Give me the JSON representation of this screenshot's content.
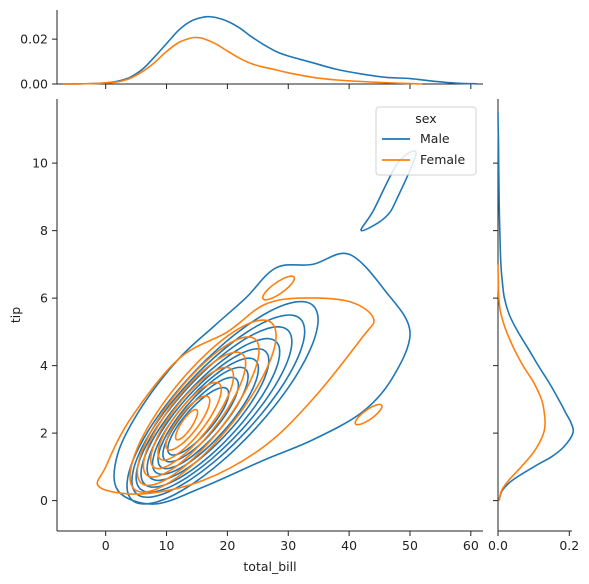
{
  "chart_data": {
    "type": "kde_joint",
    "xlabel": "total_bill",
    "ylabel": "tip",
    "xlim": [
      -8,
      62
    ],
    "ylim": [
      -0.9,
      11.9
    ],
    "x_ticks": [
      0,
      10,
      20,
      30,
      40,
      50,
      60
    ],
    "y_ticks": [
      0,
      2,
      4,
      6,
      8,
      10
    ],
    "legend": {
      "title": "sex",
      "placement": "upper-right",
      "entries": [
        "Male",
        "Female"
      ]
    },
    "colors": {
      "Male": "#1f77b4",
      "Female": "#ff7f0e"
    },
    "marginal_x": {
      "ylim": [
        0,
        0.033
      ],
      "y_ticks": [
        0.0,
        0.02
      ],
      "y_tick_labels": [
        "0.00",
        "0.02"
      ],
      "series": [
        {
          "name": "Male",
          "x": [
            -7,
            -4,
            -1,
            2,
            4,
            6,
            8,
            10,
            12,
            14,
            16,
            17,
            18,
            20,
            22,
            24,
            26,
            28,
            30,
            34,
            38,
            42,
            46,
            50,
            54,
            58,
            61
          ],
          "y": [
            0,
            0.0001,
            0.0003,
            0.0013,
            0.003,
            0.0065,
            0.012,
            0.018,
            0.024,
            0.028,
            0.0298,
            0.03,
            0.0297,
            0.028,
            0.025,
            0.021,
            0.0175,
            0.0145,
            0.0125,
            0.0095,
            0.0065,
            0.0045,
            0.003,
            0.0024,
            0.0012,
            0.0003,
            0.0001
          ]
        },
        {
          "name": "Female",
          "x": [
            -7,
            -4,
            -1,
            2,
            4,
            6,
            8,
            10,
            12,
            14,
            15,
            16,
            18,
            20,
            22,
            24,
            26,
            28,
            30,
            34,
            38,
            42,
            46,
            50,
            52
          ],
          "y": [
            0,
            0.0001,
            0.0003,
            0.001,
            0.0025,
            0.0055,
            0.0095,
            0.0145,
            0.0185,
            0.0205,
            0.0207,
            0.0203,
            0.018,
            0.0147,
            0.0115,
            0.009,
            0.0075,
            0.0063,
            0.005,
            0.003,
            0.0018,
            0.0011,
            0.0006,
            0.0002,
            0
          ]
        }
      ]
    },
    "marginal_y": {
      "xlim": [
        0,
        0.23
      ],
      "x_ticks": [
        0.0,
        0.2
      ],
      "x_tick_labels": [
        "0.0",
        "0.2"
      ],
      "series": [
        {
          "name": "Male",
          "y": [
            0,
            0.3,
            0.6,
            1,
            1.3,
            1.6,
            2,
            2.3,
            2.6,
            3,
            3.5,
            4,
            4.5,
            5,
            5.5,
            6,
            6.5,
            7,
            8,
            9,
            10,
            10.6,
            11,
            11.5
          ],
          "x": [
            0.003,
            0.012,
            0.04,
            0.1,
            0.15,
            0.185,
            0.21,
            0.205,
            0.19,
            0.17,
            0.143,
            0.113,
            0.085,
            0.056,
            0.032,
            0.018,
            0.012,
            0.008,
            0.005,
            0.003,
            0.002,
            0.0015,
            0.0006,
            0
          ]
        },
        {
          "name": "Female",
          "y": [
            0,
            0.3,
            0.6,
            1,
            1.3,
            1.6,
            2,
            2.3,
            2.6,
            3,
            3.5,
            4,
            4.5,
            5,
            5.5,
            5.8,
            6.2,
            6.6,
            7
          ],
          "x": [
            0.003,
            0.01,
            0.03,
            0.065,
            0.09,
            0.11,
            0.128,
            0.132,
            0.13,
            0.122,
            0.1,
            0.07,
            0.045,
            0.024,
            0.009,
            0.004,
            0.0015,
            0.0005,
            0
          ]
        }
      ]
    },
    "contours": [
      {
        "name": "Male",
        "levels": [
          {
            "center": [
              15.2,
              2.35
            ],
            "sx": 5.0,
            "sy": 1.0
          },
          {
            "center": [
              15.6,
              2.4
            ],
            "sx": 6.2,
            "sy": 1.25
          },
          {
            "center": [
              16.0,
              2.45
            ],
            "sx": 7.4,
            "sy": 1.5
          },
          {
            "center": [
              16.4,
              2.5
            ],
            "sx": 8.7,
            "sy": 1.72
          },
          {
            "center": [
              16.8,
              2.55
            ],
            "sx": 10.0,
            "sy": 1.95
          },
          {
            "center": [
              17.2,
              2.6
            ],
            "sx": 11.4,
            "sy": 2.2
          },
          {
            "center": [
              17.8,
              2.7
            ],
            "sx": 12.8,
            "sy": 2.45
          },
          {
            "center": [
              18.5,
              2.8
            ],
            "sx": 14.2,
            "sy": 2.7
          },
          {
            "center": [
              19.2,
              2.9
            ],
            "sx": 15.7,
            "sy": 3.0
          }
        ],
        "outer": [
          [
            2,
            0.3
          ],
          [
            8,
            -0.1
          ],
          [
            16,
            0.4
          ],
          [
            26,
            1.2
          ],
          [
            34,
            1.8
          ],
          [
            42,
            2.6
          ],
          [
            47,
            3.6
          ],
          [
            50,
            5.0
          ],
          [
            46,
            6.2
          ],
          [
            40,
            7.3
          ],
          [
            34,
            7.0
          ],
          [
            28,
            6.9
          ],
          [
            23,
            6.0
          ],
          [
            18,
            5.2
          ],
          [
            12,
            4.2
          ],
          [
            6,
            2.8
          ],
          [
            2,
            1.4
          ]
        ],
        "peak": [
          [
            42,
            8.0
          ],
          [
            46,
            8.4
          ],
          [
            48,
            9.0
          ],
          [
            51,
            10.3
          ],
          [
            48,
            10.0
          ],
          [
            44,
            8.6
          ]
        ]
      },
      {
        "name": "Female",
        "levels": [
          {
            "center": [
              13.3,
              2.25
            ],
            "sx": 1.8,
            "sy": 0.45
          },
          {
            "center": [
              13.5,
              2.3
            ],
            "sx": 3.6,
            "sy": 0.8
          },
          {
            "center": [
              13.8,
              2.35
            ],
            "sx": 5.2,
            "sy": 1.15
          },
          {
            "center": [
              14.2,
              2.45
            ],
            "sx": 6.8,
            "sy": 1.5
          },
          {
            "center": [
              14.6,
              2.55
            ],
            "sx": 8.4,
            "sy": 1.85
          },
          {
            "center": [
              15.2,
              2.65
            ],
            "sx": 10.0,
            "sy": 2.2
          },
          {
            "center": [
              16.0,
              2.8
            ],
            "sx": 12.0,
            "sy": 2.55
          }
        ],
        "outer": [
          [
            -1,
            0.4
          ],
          [
            6,
            0.2
          ],
          [
            16,
            0.6
          ],
          [
            26,
            1.6
          ],
          [
            34,
            3.0
          ],
          [
            42,
            4.8
          ],
          [
            44,
            5.4
          ],
          [
            40,
            5.9
          ],
          [
            32,
            6.0
          ],
          [
            26,
            5.8
          ],
          [
            20,
            5.0
          ],
          [
            12,
            4.2
          ],
          [
            4,
            2.4
          ],
          [
            0,
            1.0
          ]
        ],
        "islands": [
          {
            "center": [
              28.4,
              6.3
            ],
            "sx": 2.6,
            "sy": 0.35
          },
          {
            "center": [
              43.2,
              2.55
            ],
            "sx": 2.2,
            "sy": 0.3
          }
        ]
      }
    ]
  }
}
